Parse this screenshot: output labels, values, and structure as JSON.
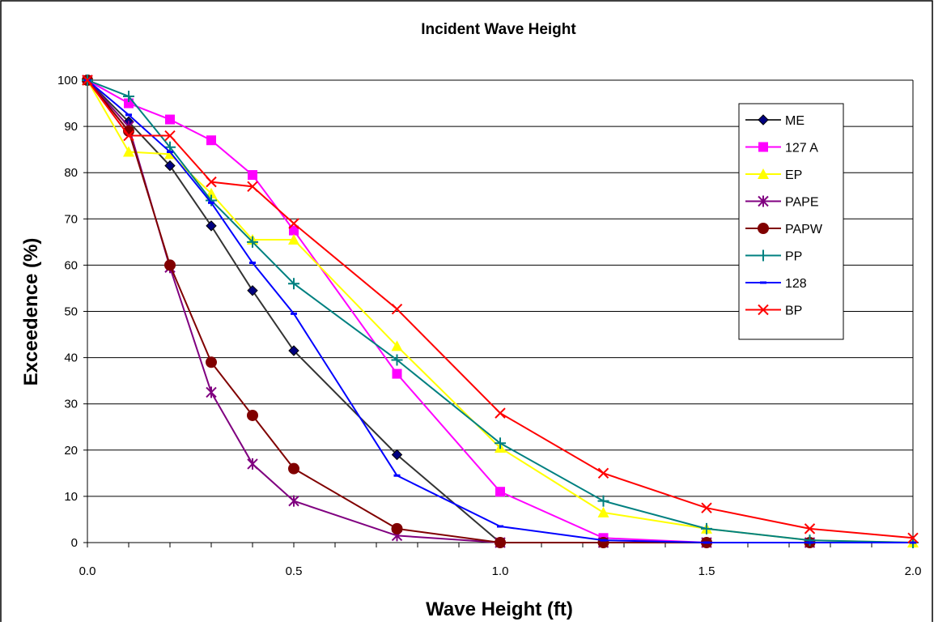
{
  "chart_data": {
    "type": "line",
    "title": "Incident Wave Height",
    "xlabel": "Wave Height (ft)",
    "ylabel": "Exceedence (%)",
    "xlim": [
      0,
      2.0
    ],
    "ylim": [
      0,
      100
    ],
    "xticks": [
      "0.0",
      "0.5",
      "1.0",
      "1.5",
      "2.0"
    ],
    "xtick_values": [
      0,
      0.5,
      1.0,
      1.5,
      2.0
    ],
    "yticks": [
      "0",
      "10",
      "20",
      "30",
      "40",
      "50",
      "60",
      "70",
      "80",
      "90",
      "100"
    ],
    "ytick_values": [
      0,
      10,
      20,
      30,
      40,
      50,
      60,
      70,
      80,
      90,
      100
    ],
    "grid": "horizontal",
    "legend_position": "right",
    "series": [
      {
        "name": "ME",
        "color": "#000080",
        "line": "#333333",
        "marker": "diamond",
        "x": [
          0,
          0.1,
          0.2,
          0.3,
          0.4,
          0.5,
          0.75,
          1.0
        ],
        "y": [
          100,
          91,
          81.5,
          68.5,
          54.5,
          41.5,
          19,
          0
        ]
      },
      {
        "name": "127 A",
        "color": "#ff00ff",
        "line": "#ff00ff",
        "marker": "square",
        "x": [
          0,
          0.1,
          0.2,
          0.3,
          0.4,
          0.5,
          0.75,
          1.0,
          1.25,
          1.5
        ],
        "y": [
          100,
          95,
          91.5,
          87,
          79.5,
          67.5,
          36.5,
          11,
          1,
          0
        ]
      },
      {
        "name": "EP",
        "color": "#ffff00",
        "line": "#ffff00",
        "marker": "triangle",
        "x": [
          0,
          0.1,
          0.2,
          0.3,
          0.4,
          0.5,
          0.75,
          1.0,
          1.25,
          1.5,
          1.75,
          2.0
        ],
        "y": [
          100,
          84.5,
          84,
          75.5,
          65.5,
          65.5,
          42.5,
          20.5,
          6.5,
          3,
          0.5,
          0
        ]
      },
      {
        "name": "PAPE",
        "color": "#800080",
        "line": "#800080",
        "marker": "asterisk",
        "x": [
          0,
          0.1,
          0.2,
          0.3,
          0.4,
          0.5,
          0.75,
          1.0,
          1.25,
          1.5,
          1.75
        ],
        "y": [
          100,
          90,
          59.5,
          32.5,
          17,
          9,
          1.5,
          0,
          0,
          0,
          0
        ]
      },
      {
        "name": "PAPW",
        "color": "#800000",
        "line": "#800000",
        "marker": "circle",
        "x": [
          0,
          0.1,
          0.2,
          0.3,
          0.4,
          0.5,
          0.75,
          1.0,
          1.25,
          1.5,
          1.75
        ],
        "y": [
          100,
          89,
          60,
          39,
          27.5,
          16,
          3,
          0,
          0,
          0,
          0
        ]
      },
      {
        "name": "PP",
        "color": "#008080",
        "line": "#008080",
        "marker": "plus",
        "x": [
          0,
          0.1,
          0.2,
          0.3,
          0.4,
          0.5,
          0.75,
          1.0,
          1.25,
          1.5,
          1.75,
          2.0
        ],
        "y": [
          100,
          96.5,
          85.5,
          74,
          65,
          56,
          39.5,
          21.5,
          9,
          3,
          0.5,
          0
        ]
      },
      {
        "name": "128",
        "color": "#0000ff",
        "line": "#0000ff",
        "marker": "dash",
        "x": [
          0,
          0.1,
          0.2,
          0.3,
          0.4,
          0.5,
          0.75,
          1.0,
          1.25,
          1.5,
          1.75,
          2.0
        ],
        "y": [
          100,
          92.5,
          84.5,
          73.5,
          60.5,
          49.5,
          14.5,
          3.5,
          0.5,
          0,
          0,
          0
        ]
      },
      {
        "name": "BP",
        "color": "#ff0000",
        "line": "#ff0000",
        "marker": "x",
        "x": [
          0,
          0.1,
          0.2,
          0.3,
          0.4,
          0.5,
          0.75,
          1.0,
          1.25,
          1.5,
          1.75,
          2.0
        ],
        "y": [
          100,
          88,
          88,
          78,
          77,
          69,
          50.5,
          28,
          15,
          7.5,
          3,
          1
        ]
      }
    ]
  }
}
